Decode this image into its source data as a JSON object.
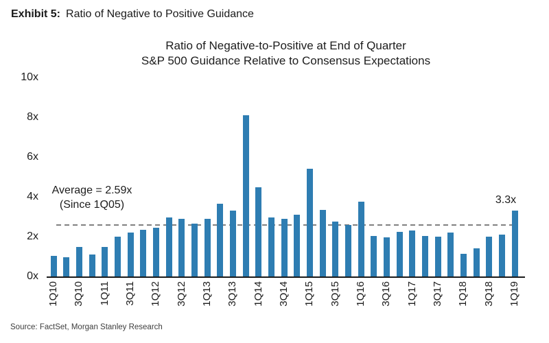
{
  "exhibit": {
    "label": "Exhibit 5:",
    "title": "Ratio of Negative to Positive Guidance"
  },
  "chart_data": {
    "type": "bar",
    "title": [
      "Ratio of Negative-to-Positive at End of Quarter",
      "S&P 500 Guidance Relative to Consensus Expectations"
    ],
    "categories": [
      "1Q10",
      "2Q10",
      "3Q10",
      "4Q10",
      "1Q11",
      "2Q11",
      "3Q11",
      "4Q11",
      "1Q12",
      "2Q12",
      "3Q12",
      "4Q12",
      "1Q13",
      "2Q13",
      "3Q13",
      "4Q13",
      "1Q14",
      "2Q14",
      "3Q14",
      "4Q14",
      "1Q15",
      "2Q15",
      "3Q15",
      "4Q15",
      "1Q16",
      "2Q16",
      "3Q16",
      "4Q16",
      "1Q17",
      "2Q17",
      "3Q17",
      "4Q17",
      "1Q18",
      "2Q18",
      "3Q18",
      "4Q18",
      "1Q19"
    ],
    "values": [
      1.05,
      0.95,
      1.5,
      1.1,
      1.5,
      2.0,
      2.2,
      2.35,
      2.45,
      2.95,
      2.9,
      2.65,
      2.9,
      3.65,
      3.3,
      8.1,
      4.5,
      2.95,
      2.9,
      3.1,
      5.4,
      3.35,
      2.75,
      2.6,
      3.75,
      2.05,
      1.95,
      2.25,
      2.3,
      2.05,
      2.0,
      2.2,
      1.15,
      1.4,
      2.0,
      2.1,
      3.3
    ],
    "xtick_labels": [
      "1Q10",
      "3Q10",
      "1Q11",
      "3Q11",
      "1Q12",
      "3Q12",
      "1Q13",
      "3Q13",
      "1Q14",
      "3Q14",
      "1Q15",
      "3Q15",
      "1Q16",
      "3Q16",
      "1Q17",
      "3Q17",
      "1Q18",
      "3Q18",
      "1Q19"
    ],
    "xtick_every": 2,
    "ytick_labels": [
      "0x",
      "2x",
      "4x",
      "6x",
      "8x",
      "10x"
    ],
    "ytick_values": [
      0,
      2,
      4,
      6,
      8,
      10
    ],
    "ylim": [
      0,
      10
    ],
    "average_value": 2.59,
    "annotations": {
      "average": [
        "Average = 2.59x",
        "(Since 1Q05)"
      ],
      "last_bar": "3.3x"
    },
    "bar_color": "#2e7db2",
    "average_line_color": "#808080",
    "grid": "off",
    "legend": "none"
  },
  "source": "Source: FactSet, Morgan Stanley Research"
}
